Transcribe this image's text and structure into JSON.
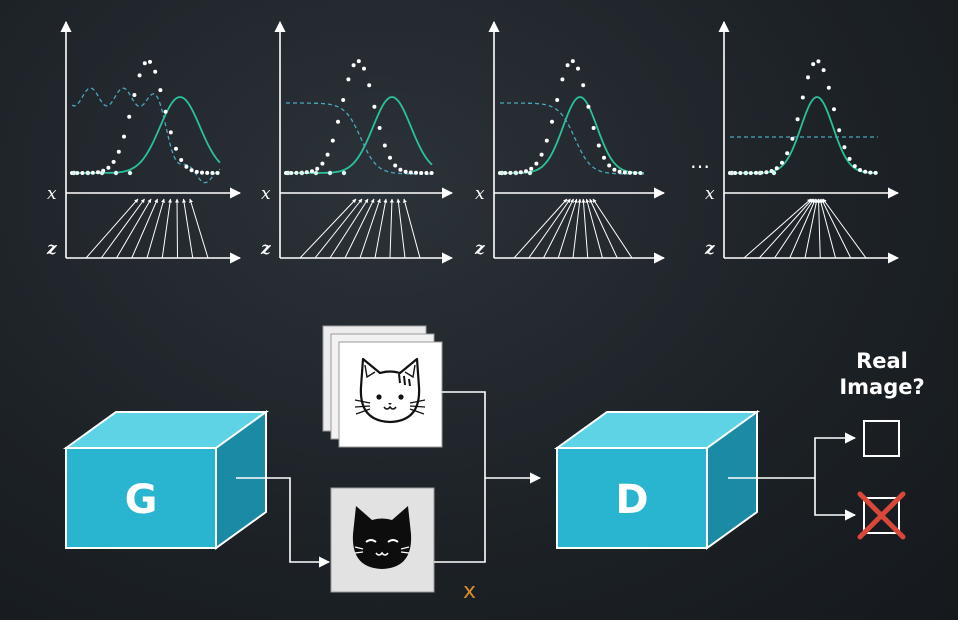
{
  "panels": [
    {
      "x_axis_label": "x",
      "z_axis_label": "z"
    },
    {
      "x_axis_label": "x",
      "z_axis_label": "z"
    },
    {
      "x_axis_label": "x",
      "z_axis_label": "z"
    },
    {
      "x_axis_label": "x",
      "z_axis_label": "z"
    }
  ],
  "ellipsis": "…",
  "generator": {
    "label": "G"
  },
  "discriminator": {
    "label": "D"
  },
  "fake_sample_label": "x",
  "question": {
    "line1": "Real",
    "line2": "Image?"
  },
  "colors": {
    "background": "#1c2126",
    "box_front": "#29b4cf",
    "box_top": "#5fd3e6",
    "box_side": "#1b8aa4",
    "teal_curve": "#2bc19a",
    "dashed_curve": "#4aa8bf",
    "sample_label": "#d98b2c",
    "cross": "#d9463a"
  }
}
